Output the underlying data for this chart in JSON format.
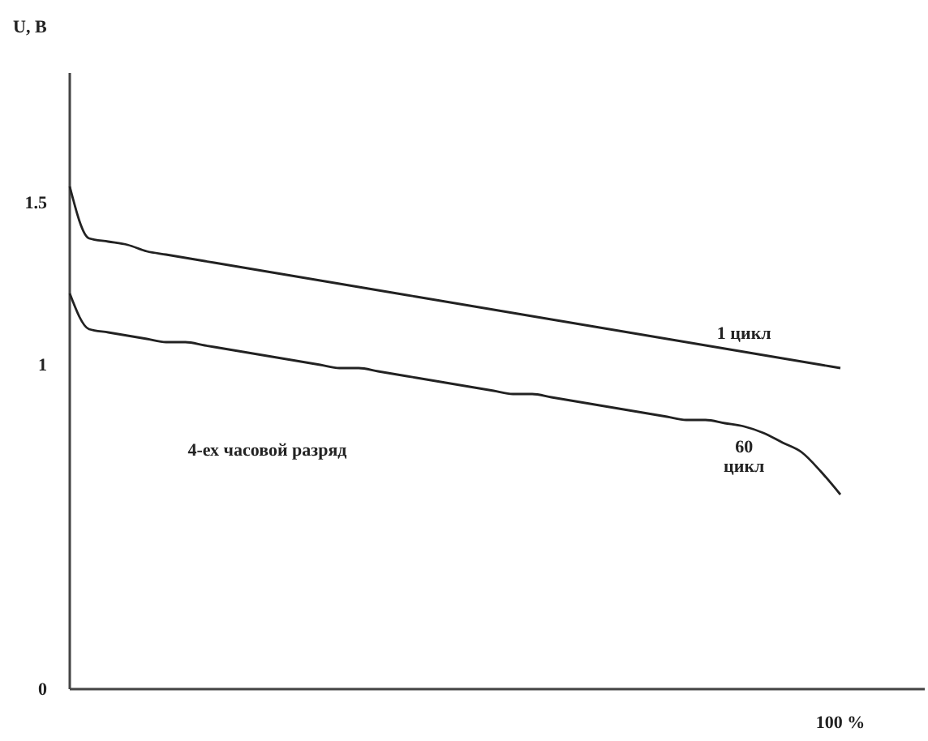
{
  "chart_data": {
    "type": "line",
    "ylabel": "U, В",
    "ylim": [
      0,
      1.9
    ],
    "yticks": [
      0,
      1,
      1.5
    ],
    "grid": false,
    "legend": false,
    "marker": "none",
    "line_style": "solid",
    "categories": [
      null,
      null,
      null,
      null,
      null,
      null,
      null,
      null,
      null,
      null,
      null,
      null,
      null,
      null,
      null,
      null,
      null,
      null,
      null,
      null,
      null,
      null,
      null,
      null,
      null,
      null,
      null,
      null,
      null,
      null,
      null,
      null,
      null,
      null,
      null,
      null,
      null,
      null,
      null,
      null,
      null
    ],
    "series": [
      {
        "name": "1 цикл",
        "color": "#222222",
        "values": [
          1.55,
          1.39,
          1.38,
          1.37,
          1.35,
          1.34,
          1.33,
          1.32,
          1.31,
          1.3,
          1.29,
          1.28,
          1.27,
          1.26,
          1.25,
          1.24,
          1.23,
          1.22,
          1.21,
          1.2,
          1.19,
          1.18,
          1.17,
          1.16,
          1.15,
          1.14,
          1.13,
          1.12,
          1.11,
          1.1,
          1.09,
          1.08,
          1.07,
          1.06,
          1.05,
          1.04,
          1.03,
          1.02,
          1.01,
          1.0,
          0.99
        ]
      },
      {
        "name": "60\nцикл",
        "color": "#222222",
        "values": [
          1.22,
          1.11,
          1.1,
          1.09,
          1.08,
          1.07,
          1.07,
          1.06,
          1.05,
          1.04,
          1.03,
          1.02,
          1.01,
          1.0,
          0.99,
          0.99,
          0.98,
          0.97,
          0.96,
          0.95,
          0.94,
          0.93,
          0.92,
          0.91,
          0.91,
          0.9,
          0.89,
          0.88,
          0.87,
          0.86,
          0.85,
          0.84,
          0.83,
          0.83,
          0.82,
          0.81,
          0.79,
          0.76,
          0.73,
          0.67,
          0.6
        ]
      }
    ],
    "annotations": [
      "4-ех часовой разряд",
      "100 %"
    ]
  }
}
